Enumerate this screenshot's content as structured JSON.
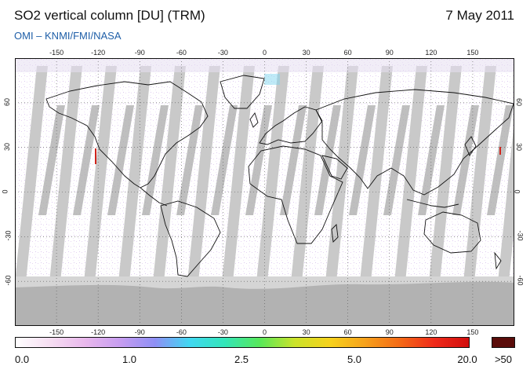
{
  "header": {
    "title": "SO2 vertical column [DU] (TRM)",
    "date": "7 May 2011",
    "subtitle": "OMI  –  KNMI/FMI/NASA"
  },
  "map": {
    "longitude_ticks": [
      "-150",
      "-120",
      "-90",
      "-60",
      "-30",
      "0",
      "30",
      "60",
      "90",
      "120",
      "150"
    ],
    "latitude_ticks": [
      "60",
      "30",
      "0",
      "-30",
      "-60"
    ],
    "longitude_values": [
      -150,
      -120,
      -90,
      -60,
      -30,
      0,
      30,
      60,
      90,
      120,
      150
    ],
    "latitude_values": [
      60,
      30,
      0,
      -30,
      -60
    ],
    "lon_range": [
      -180,
      180
    ],
    "lat_range": [
      -90,
      90
    ],
    "projection": "equirectangular",
    "grid": "dotted"
  },
  "colorbar": {
    "labels": [
      "0.0",
      "1.0",
      "2.5",
      "5.0",
      "20.0",
      ">50"
    ],
    "colors": [
      "#ffffff",
      "#f6def2",
      "#e9b8ec",
      "#c79df0",
      "#8f8ff5",
      "#41d8f2",
      "#33e6b9",
      "#57e85a",
      "#cbe32a",
      "#f6d21c",
      "#f6a21c",
      "#f46a16",
      "#ef2a1a",
      "#d00d0d"
    ],
    "overflow_color": "#5a0c0a"
  },
  "colors": {
    "land_outline": "#111111",
    "orbit_gap": "#c9c9c9",
    "orbit_gap_dark": "#a9a9a9",
    "polar_nodata": "#b9b9b9"
  }
}
